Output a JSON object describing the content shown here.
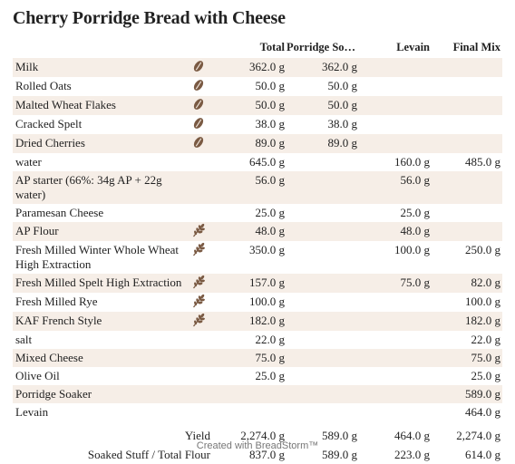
{
  "title": "Cherry Porridge Bread with Cheese",
  "columns": {
    "total": "Total",
    "soaker": "Porridge Soa…",
    "levain": "Levain",
    "final": "Final Mix"
  },
  "rows": [
    {
      "name": "Milk",
      "icon": "bean-icon",
      "total": "362.0 g",
      "soaker": "362.0 g",
      "levain": "",
      "final": ""
    },
    {
      "name": "Rolled Oats",
      "icon": "bean-icon",
      "total": "50.0 g",
      "soaker": "50.0 g",
      "levain": "",
      "final": ""
    },
    {
      "name": "Malted Wheat Flakes",
      "icon": "bean-icon",
      "total": "50.0 g",
      "soaker": "50.0 g",
      "levain": "",
      "final": ""
    },
    {
      "name": "Cracked Spelt",
      "icon": "bean-icon",
      "total": "38.0 g",
      "soaker": "38.0 g",
      "levain": "",
      "final": ""
    },
    {
      "name": "Dried Cherries",
      "icon": "bean-icon",
      "total": "89.0 g",
      "soaker": "89.0 g",
      "levain": "",
      "final": ""
    },
    {
      "name": "water",
      "icon": "",
      "total": "645.0 g",
      "soaker": "",
      "levain": "160.0 g",
      "final": "485.0 g"
    },
    {
      "name": "AP starter (66%: 34g AP + 22g water)",
      "icon": "",
      "total": "56.0 g",
      "soaker": "",
      "levain": "56.0 g",
      "final": ""
    },
    {
      "name": "Paramesan Cheese",
      "icon": "",
      "total": "25.0 g",
      "soaker": "",
      "levain": "25.0 g",
      "final": ""
    },
    {
      "name": "AP Flour",
      "icon": "wheat-icon",
      "total": "48.0 g",
      "soaker": "",
      "levain": "48.0 g",
      "final": ""
    },
    {
      "name": "Fresh Milled Winter Whole Wheat High Extraction",
      "icon": "wheat-icon",
      "total": "350.0 g",
      "soaker": "",
      "levain": "100.0 g",
      "final": "250.0 g"
    },
    {
      "name": "Fresh Milled Spelt High Extraction",
      "icon": "wheat-icon",
      "total": "157.0 g",
      "soaker": "",
      "levain": "75.0 g",
      "final": "82.0 g"
    },
    {
      "name": "Fresh Milled Rye",
      "icon": "wheat-icon",
      "total": "100.0 g",
      "soaker": "",
      "levain": "",
      "final": "100.0 g"
    },
    {
      "name": "KAF French Style",
      "icon": "wheat-icon",
      "total": "182.0 g",
      "soaker": "",
      "levain": "",
      "final": "182.0 g"
    },
    {
      "name": "salt",
      "icon": "",
      "total": "22.0 g",
      "soaker": "",
      "levain": "",
      "final": "22.0 g"
    },
    {
      "name": "Mixed Cheese",
      "icon": "",
      "total": "75.0 g",
      "soaker": "",
      "levain": "",
      "final": "75.0 g"
    },
    {
      "name": "Olive Oil",
      "icon": "",
      "total": "25.0 g",
      "soaker": "",
      "levain": "",
      "final": "25.0 g"
    },
    {
      "name": "Porridge Soaker",
      "icon": "",
      "total": "",
      "soaker": "",
      "levain": "",
      "final": "589.0 g"
    },
    {
      "name": "Levain",
      "icon": "",
      "total": "",
      "soaker": "",
      "levain": "",
      "final": "464.0 g"
    }
  ],
  "summary": [
    {
      "label": "Yield",
      "total": "2,274.0 g",
      "soaker": "589.0 g",
      "levain": "464.0 g",
      "final": "2,274.0 g"
    },
    {
      "label": "Soaked Stuff / Total Flour",
      "total": "837.0 g",
      "soaker": "589.0 g",
      "levain": "223.0 g",
      "final": "614.0 g"
    }
  ],
  "footer": "Created with BreadStorm™",
  "colors": {
    "shade": "#f6eee7",
    "icon": "#7a5a43"
  }
}
